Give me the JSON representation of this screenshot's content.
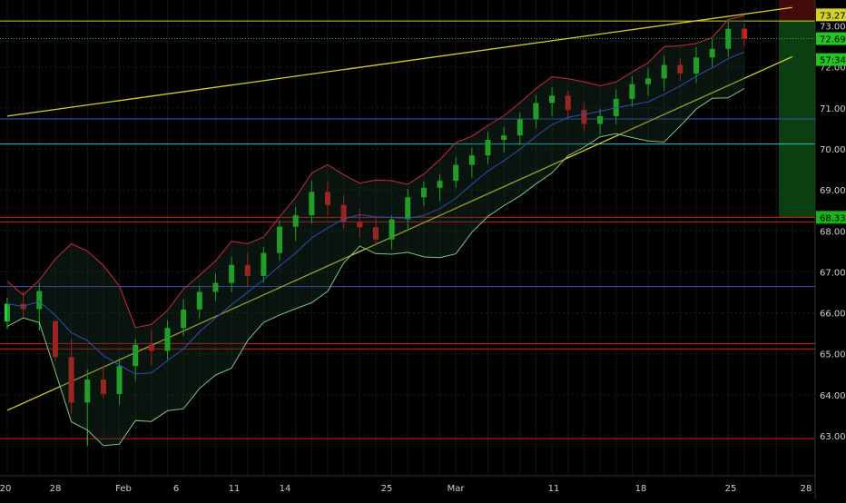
{
  "chart_data": {
    "type": "candlestick",
    "title": "",
    "x_ticks": [
      "20",
      "28",
      "Feb",
      "6",
      "11",
      "14",
      "25",
      "Mar",
      "11",
      "18",
      "25",
      "28"
    ],
    "y_ticks": [
      "63.00",
      "64.00",
      "65.00",
      "66.00",
      "67.00",
      "68.00",
      "69.00",
      "70.00",
      "71.00",
      "72.00",
      "73.00"
    ],
    "ylim": [
      62.6,
      73.5
    ],
    "grid": true,
    "price_labels": {
      "top_level": "73.27",
      "last_price": "72.69",
      "countdown": "57:34",
      "support": "68.33"
    },
    "horizontal_levels": [
      {
        "value": 73.12,
        "color": "#d4d02a",
        "style": "solid"
      },
      {
        "value": 72.69,
        "color": "#24c424",
        "style": "dotted"
      },
      {
        "value": 70.73,
        "color": "#3a56c8",
        "style": "solid"
      },
      {
        "value": 70.12,
        "color": "#1ec6c6",
        "style": "solid"
      },
      {
        "value": 68.33,
        "color": "#e01818",
        "style": "solid"
      },
      {
        "value": 68.22,
        "color": "#e01818",
        "style": "solid"
      },
      {
        "value": 66.64,
        "color": "#3a56c8",
        "style": "solid"
      },
      {
        "value": 65.25,
        "color": "#e01818",
        "style": "solid"
      },
      {
        "value": 65.12,
        "color": "#e01818",
        "style": "solid"
      },
      {
        "value": 62.93,
        "color": "#e01818",
        "style": "solid"
      }
    ],
    "trendlines": [
      {
        "name": "upper-channel",
        "from": [
          0,
          70.8
        ],
        "to": [
          49,
          73.45
        ],
        "color": "#d4d02a"
      },
      {
        "name": "lower-channel",
        "from": [
          0,
          63.62
        ],
        "to": [
          49,
          72.25
        ],
        "color": "#d4d02a"
      }
    ],
    "candles": [
      [
        0,
        65.79,
        66.37,
        65.61,
        66.22
      ],
      [
        1,
        66.22,
        66.51,
        65.89,
        66.09
      ],
      [
        2,
        66.09,
        66.74,
        65.57,
        66.53
      ],
      [
        3,
        65.8,
        65.8,
        64.82,
        64.92
      ],
      [
        4,
        64.92,
        65.37,
        63.53,
        63.81
      ],
      [
        5,
        63.81,
        64.62,
        62.75,
        64.37
      ],
      [
        6,
        64.37,
        64.7,
        63.91,
        64.02
      ],
      [
        7,
        64.02,
        64.88,
        63.76,
        64.7
      ],
      [
        8,
        64.7,
        65.37,
        64.34,
        65.22
      ],
      [
        9,
        65.22,
        65.58,
        64.71,
        65.07
      ],
      [
        10,
        65.07,
        65.82,
        64.86,
        65.63
      ],
      [
        11,
        65.63,
        66.33,
        65.44,
        66.08
      ],
      [
        12,
        66.08,
        66.66,
        65.88,
        66.51
      ],
      [
        13,
        66.51,
        66.96,
        66.29,
        66.73
      ],
      [
        14,
        66.73,
        67.37,
        66.5,
        67.17
      ],
      [
        15,
        67.17,
        67.45,
        66.63,
        66.9
      ],
      [
        16,
        66.9,
        67.61,
        66.73,
        67.46
      ],
      [
        17,
        67.46,
        68.25,
        67.27,
        68.1
      ],
      [
        18,
        68.1,
        68.58,
        67.76,
        68.38
      ],
      [
        19,
        68.38,
        69.22,
        68.17,
        68.95
      ],
      [
        20,
        68.95,
        69.21,
        68.39,
        68.63
      ],
      [
        21,
        68.63,
        68.88,
        68.07,
        68.22
      ],
      [
        22,
        68.22,
        68.54,
        67.84,
        68.09
      ],
      [
        23,
        68.09,
        68.32,
        67.63,
        67.79
      ],
      [
        24,
        67.79,
        68.38,
        67.55,
        68.28
      ],
      [
        25,
        68.28,
        69.02,
        68.02,
        68.82
      ],
      [
        26,
        68.82,
        69.2,
        68.6,
        69.05
      ],
      [
        27,
        69.05,
        69.38,
        68.73,
        69.22
      ],
      [
        28,
        69.22,
        69.8,
        69.05,
        69.61
      ],
      [
        29,
        69.61,
        70.02,
        69.3,
        69.84
      ],
      [
        30,
        69.84,
        70.4,
        69.63,
        70.22
      ],
      [
        31,
        70.22,
        70.54,
        69.92,
        70.33
      ],
      [
        32,
        70.33,
        70.88,
        70.1,
        70.72
      ],
      [
        33,
        70.72,
        71.3,
        70.5,
        71.12
      ],
      [
        34,
        71.12,
        71.5,
        70.8,
        71.3
      ],
      [
        35,
        71.3,
        71.42,
        70.74,
        70.95
      ],
      [
        36,
        70.95,
        71.14,
        70.43,
        70.61
      ],
      [
        37,
        70.61,
        70.98,
        70.34,
        70.8
      ],
      [
        38,
        70.8,
        71.44,
        70.6,
        71.22
      ],
      [
        39,
        71.22,
        71.78,
        71.03,
        71.58
      ],
      [
        40,
        71.58,
        71.98,
        71.3,
        71.72
      ],
      [
        41,
        71.72,
        72.27,
        71.42,
        72.05
      ],
      [
        42,
        72.05,
        72.21,
        71.66,
        71.84
      ],
      [
        43,
        71.84,
        72.48,
        71.61,
        72.23
      ],
      [
        44,
        72.23,
        72.68,
        72.0,
        72.44
      ],
      [
        45,
        72.44,
        73.12,
        72.25,
        72.93
      ],
      [
        46,
        72.93,
        73.06,
        72.5,
        72.69
      ]
    ]
  }
}
